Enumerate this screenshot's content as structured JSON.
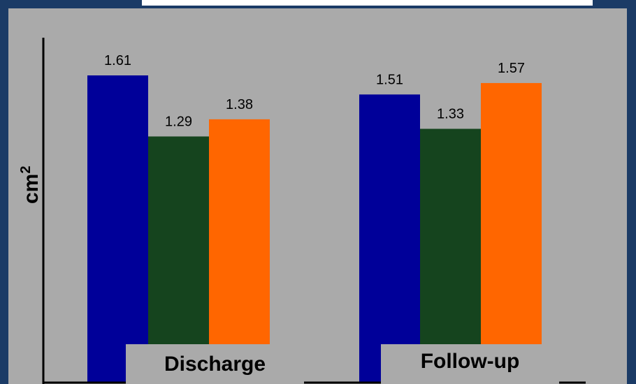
{
  "colors": {
    "background": "#1b3b66",
    "panel": "#aaaaaa",
    "series": [
      "#000099",
      "#15441e",
      "#ff6600"
    ]
  },
  "chart_data": {
    "type": "bar",
    "categories": [
      "Discharge",
      "Follow-up"
    ],
    "series": [
      {
        "values": [
          1.61,
          1.51
        ]
      },
      {
        "values": [
          1.29,
          1.33
        ]
      },
      {
        "values": [
          1.38,
          1.57
        ]
      }
    ],
    "value_labels": [
      [
        "1.61",
        "1.29",
        "1.38"
      ],
      [
        "1.51",
        "1.33",
        "1.57"
      ]
    ],
    "ylabel_base": "cm",
    "ylabel_sup": "2",
    "ylim": [
      0,
      1.9
    ],
    "grid": false,
    "legend": "none"
  }
}
